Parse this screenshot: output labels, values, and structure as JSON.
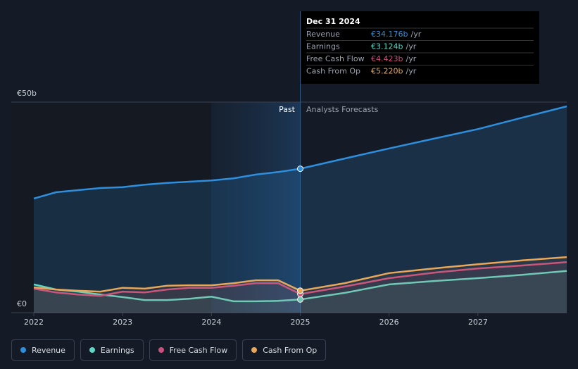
{
  "chart_data": {
    "type": "line",
    "past_label": "Past",
    "forecast_label": "Analysts Forecasts",
    "x": [
      2022,
      2022.25,
      2022.5,
      2022.75,
      2023,
      2023.25,
      2023.5,
      2023.75,
      2024,
      2024.25,
      2024.5,
      2024.75,
      2025,
      2025.5,
      2026,
      2026.5,
      2027,
      2027.5,
      2028
    ],
    "xlim": [
      2022,
      2028
    ],
    "xticks": [
      2022,
      2023,
      2024,
      2025,
      2026,
      2027
    ],
    "ylim": [
      0,
      50
    ],
    "yticks": [
      {
        "value": 0,
        "label": "€0"
      },
      {
        "value": 50,
        "label": "€50b"
      }
    ],
    "series": [
      {
        "name": "Revenue",
        "color": "#2d8fdd",
        "values": [
          27.1,
          28.6,
          29.1,
          29.6,
          29.8,
          30.4,
          30.8,
          31.1,
          31.4,
          31.9,
          32.8,
          33.4,
          34.176,
          36.6,
          39.0,
          41.3,
          43.6,
          46.3,
          49.0
        ]
      },
      {
        "name": "Earnings",
        "color": "#5ed6c4",
        "values": [
          6.7,
          5.5,
          5.0,
          4.3,
          3.7,
          3.0,
          3.0,
          3.3,
          3.8,
          2.7,
          2.7,
          2.8,
          3.124,
          4.7,
          6.7,
          7.5,
          8.2,
          9.0,
          9.9
        ]
      },
      {
        "name": "Free Cash Flow",
        "color": "#c9507f",
        "values": [
          5.7,
          4.8,
          4.3,
          4.0,
          5.0,
          4.8,
          5.5,
          5.9,
          5.9,
          6.4,
          7.0,
          7.0,
          4.423,
          6.2,
          8.2,
          9.5,
          10.5,
          11.2,
          12.0
        ]
      },
      {
        "name": "Cash From Op",
        "color": "#e9a75a",
        "values": [
          6.0,
          5.5,
          5.2,
          5.0,
          5.9,
          5.7,
          6.4,
          6.5,
          6.5,
          7.0,
          7.7,
          7.7,
          5.22,
          7.0,
          9.4,
          10.5,
          11.5,
          12.4,
          13.2
        ]
      }
    ],
    "tooltip": {
      "date": "Dec 31 2024",
      "unit": "/yr",
      "rows": [
        {
          "label": "Revenue",
          "value": "€34.176b"
        },
        {
          "label": "Earnings",
          "value": "€3.124b"
        },
        {
          "label": "Free Cash Flow",
          "value": "€4.423b"
        },
        {
          "label": "Cash From Op",
          "value": "€5.220b"
        }
      ]
    }
  }
}
